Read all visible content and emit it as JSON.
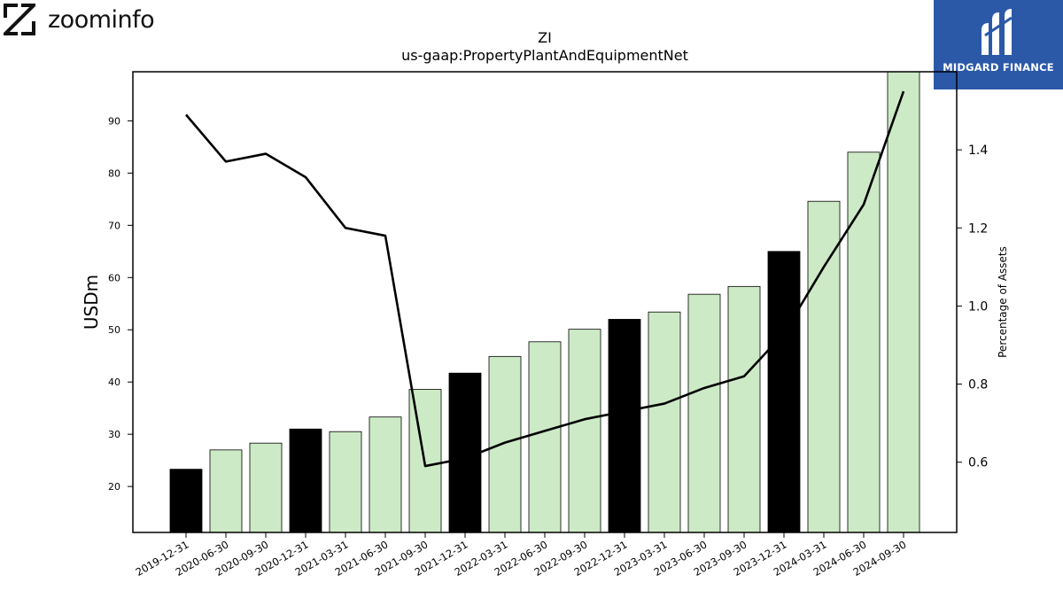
{
  "logos": {
    "left_text": "zoominfo",
    "right_text": "MIDGARD FINANCE",
    "right_bg": "#2b59a8"
  },
  "chart_data": {
    "type": "bar",
    "title": "ZI",
    "subtitle": "us-gaap:PropertyPlantAndEquipmentNet",
    "ylabel": "USDm",
    "y2label": "Percentage of Assets",
    "categories": [
      "2019-12-31",
      "2020-06-30",
      "2020-09-30",
      "2020-12-31",
      "2021-03-31",
      "2021-06-30",
      "2021-09-30",
      "2021-12-31",
      "2022-03-31",
      "2022-06-30",
      "2022-09-30",
      "2022-12-31",
      "2023-03-31",
      "2023-06-30",
      "2023-09-30",
      "2023-12-31",
      "2024-03-31",
      "2024-06-30",
      "2024-09-30"
    ],
    "values": [
      23.3,
      27.0,
      28.3,
      31.0,
      30.5,
      33.3,
      38.6,
      41.7,
      44.9,
      47.7,
      50.1,
      52.0,
      53.4,
      56.8,
      58.3,
      65.0,
      74.6,
      84.0,
      99.4
    ],
    "annual": [
      true,
      false,
      false,
      true,
      false,
      false,
      false,
      true,
      false,
      false,
      false,
      true,
      false,
      false,
      false,
      true,
      false,
      false,
      false
    ],
    "line_series": {
      "name": "Percentage of Assets",
      "values": [
        1.49,
        1.37,
        1.39,
        1.33,
        1.2,
        1.18,
        0.59,
        0.61,
        0.65,
        0.68,
        0.71,
        0.73,
        0.75,
        0.79,
        0.82,
        0.93,
        1.1,
        1.26,
        1.55
      ]
    },
    "ylim": [
      11.2,
      99.4
    ],
    "y2lim": [
      0.42,
      1.6
    ],
    "yticks": [
      20,
      30,
      40,
      50,
      60,
      70,
      80,
      90
    ],
    "y2ticks": [
      0.6,
      0.8,
      1.0,
      1.2,
      1.4
    ],
    "colors": {
      "annual_bar": "#000000",
      "quarter_bar": "#cdeac6",
      "line": "#000000"
    },
    "grid": false,
    "legend": "none"
  }
}
